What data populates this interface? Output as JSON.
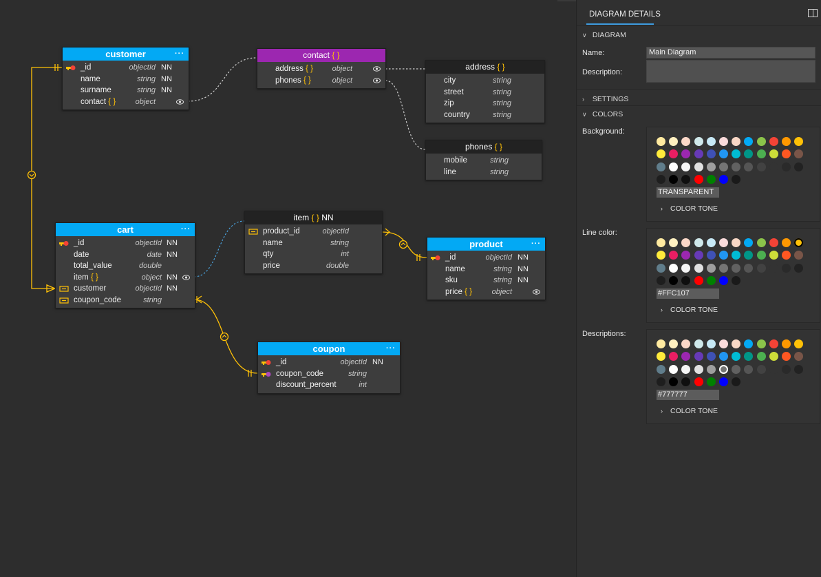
{
  "diagram": {
    "entities": {
      "customer": {
        "title": "customer",
        "menu": "···",
        "fields": [
          {
            "name": "_id",
            "type": "objectId",
            "nn": "NN"
          },
          {
            "name": "name",
            "type": "string",
            "nn": "NN"
          },
          {
            "name": "surname",
            "type": "string",
            "nn": "NN"
          },
          {
            "name": "contact",
            "brace": "{ }",
            "type": "object",
            "nn": ""
          }
        ]
      },
      "contact": {
        "title": "contact",
        "brace": "{ }",
        "fields": [
          {
            "name": "address",
            "brace": "{ }",
            "type": "object"
          },
          {
            "name": "phones",
            "brace": "{ }",
            "type": "object"
          }
        ]
      },
      "address": {
        "title": "address",
        "brace": "{ }",
        "fields": [
          {
            "name": "city",
            "type": "string"
          },
          {
            "name": "street",
            "type": "string"
          },
          {
            "name": "zip",
            "type": "string"
          },
          {
            "name": "country",
            "type": "string"
          }
        ]
      },
      "phones": {
        "title": "phones",
        "brace": "{ }",
        "fields": [
          {
            "name": "mobile",
            "type": "string"
          },
          {
            "name": "line",
            "type": "string"
          }
        ]
      },
      "cart": {
        "title": "cart",
        "menu": "···",
        "fields": [
          {
            "name": "_id",
            "type": "objectId",
            "nn": "NN"
          },
          {
            "name": "date",
            "type": "date",
            "nn": "NN"
          },
          {
            "name": "total_value",
            "type": "double",
            "nn": ""
          },
          {
            "name": "item",
            "brace": "{ }",
            "type": "object",
            "nn": "NN"
          },
          {
            "name": "customer",
            "type": "objectId",
            "nn": "NN"
          },
          {
            "name": "coupon_code",
            "type": "string",
            "nn": ""
          }
        ]
      },
      "item": {
        "title": "item",
        "brace": "{ }",
        "suffix": "NN",
        "fields": [
          {
            "name": "product_id",
            "type": "objectId"
          },
          {
            "name": "name",
            "type": "string"
          },
          {
            "name": "qty",
            "type": "int"
          },
          {
            "name": "price",
            "type": "double"
          }
        ]
      },
      "product": {
        "title": "product",
        "menu": "···",
        "fields": [
          {
            "name": "_id",
            "type": "objectId",
            "nn": "NN"
          },
          {
            "name": "name",
            "type": "string",
            "nn": "NN"
          },
          {
            "name": "sku",
            "type": "string",
            "nn": "NN"
          },
          {
            "name": "price",
            "brace": "{ }",
            "type": "object",
            "nn": ""
          }
        ]
      },
      "coupon": {
        "title": "coupon",
        "menu": "···",
        "fields": [
          {
            "name": "_id",
            "type": "objectId",
            "nn": "NN"
          },
          {
            "name": "coupon_code",
            "type": "string",
            "nn": ""
          },
          {
            "name": "discount_percent",
            "type": "int",
            "nn": ""
          }
        ]
      }
    }
  },
  "panel": {
    "tab": "DIAGRAM DETAILS",
    "section_diagram": "DIAGRAM",
    "name_label": "Name:",
    "name_value": "Main Diagram",
    "description_label": "Description:",
    "section_settings": "SETTINGS",
    "section_colors": "COLORS",
    "background_label": "Background:",
    "background_value": "TRANSPARENT",
    "line_color_label": "Line color:",
    "line_color_value": "#FFC107",
    "descriptions_label": "Descriptions:",
    "descriptions_value": "#777777",
    "color_tone": "COLOR TONE",
    "colors": {
      "accent_blue": "#03a9f4",
      "accent_purple": "#9c27b0",
      "line": "#FFC107",
      "nested_line": "#cccccc",
      "embedded_line": "#4aa3df"
    },
    "swatches": [
      "#ffeaa0",
      "#fff0c0",
      "#fbd8c8",
      "#cfe8ea",
      "#c7e9f6",
      "#fadbdb",
      "#f8d7c5",
      "#03a9f4",
      "#8bc34a",
      "#f44336",
      "#ff9800",
      "#ffc107",
      "#ffeb3b",
      "#e91e63",
      "#9c27b0",
      "#673ab7",
      "#3f51b5",
      "#2196f3",
      "#00bcd4",
      "#009688",
      "#4caf50",
      "#cddc39",
      "#ff5722",
      "#795548",
      "#607d8b",
      "#ffffff",
      "#f5f5f5",
      "#e0e0e0",
      "#9e9e9e",
      "#757575",
      "#616161",
      "#555555",
      "#424242",
      "#333333",
      "#2a2a2a",
      "#222222",
      "#1e1e1e",
      "#000000",
      "#0f0f0f",
      "#ff0000",
      "#008000",
      "#0000ff",
      "#1a1a1a"
    ]
  }
}
